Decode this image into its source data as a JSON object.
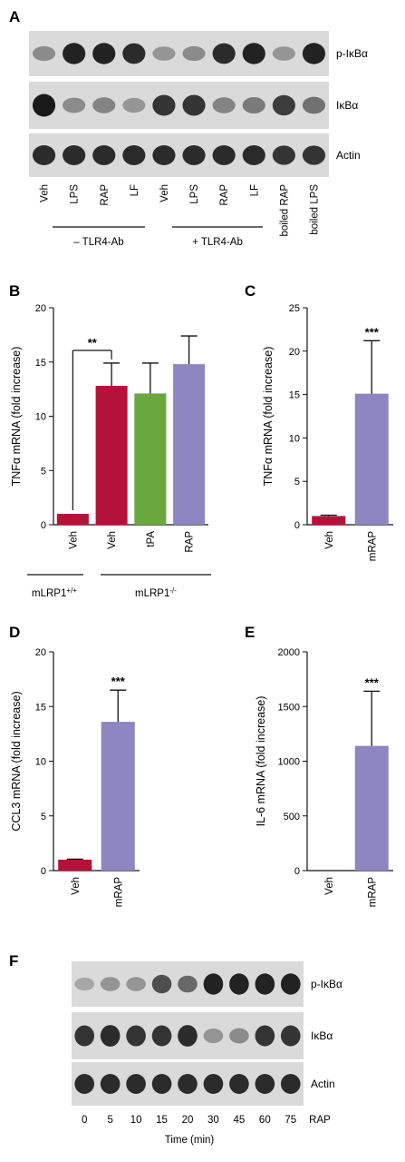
{
  "panels": {
    "A": "A",
    "B": "B",
    "C": "C",
    "D": "D",
    "E": "E",
    "F": "F"
  },
  "panel_A": {
    "blot_labels": [
      "p-IκBα",
      "IκBα",
      "Actin"
    ],
    "lanes": [
      "Veh",
      "LPS",
      "RAP",
      "LF",
      "Veh",
      "LPS",
      "RAP",
      "LF",
      "boiled RAP",
      "boiled LPS"
    ],
    "groups": [
      "– TLR4-Ab",
      "+ TLR4-Ab"
    ],
    "band_intensity": {
      "p-IkBa": [
        0.35,
        0.95,
        0.95,
        0.9,
        0.3,
        0.35,
        0.9,
        0.95,
        0.3,
        0.95
      ],
      "IkBa": [
        1.0,
        0.35,
        0.4,
        0.3,
        0.85,
        0.85,
        0.4,
        0.45,
        0.8,
        0.5
      ],
      "Actin": [
        0.9,
        0.9,
        0.9,
        0.9,
        0.9,
        0.9,
        0.9,
        0.9,
        0.85,
        0.85
      ]
    }
  },
  "panel_F": {
    "blot_labels": [
      "p-IκBα",
      "IκBα",
      "Actin"
    ],
    "lanes": [
      "0",
      "5",
      "10",
      "15",
      "20",
      "30",
      "45",
      "60",
      "75"
    ],
    "lane_suffix": "RAP",
    "xlabel": "Time (min)",
    "band_intensity": {
      "p-IkBa": [
        0.2,
        0.3,
        0.3,
        0.7,
        0.55,
        0.95,
        0.95,
        0.95,
        0.95
      ],
      "IkBa": [
        0.85,
        0.9,
        0.85,
        0.85,
        0.9,
        0.3,
        0.35,
        0.85,
        0.85
      ],
      "Actin": [
        0.9,
        0.9,
        0.9,
        0.9,
        0.9,
        0.9,
        0.9,
        0.9,
        0.9
      ]
    }
  },
  "chart_data": [
    {
      "panel": "B",
      "type": "bar",
      "categories": [
        "Veh",
        "Veh",
        "tPA",
        "RAP"
      ],
      "values": [
        1.0,
        12.8,
        12.1,
        14.8
      ],
      "errors": [
        0,
        2.1,
        2.8,
        2.6
      ],
      "colors": [
        "#b5123a",
        "#b5123a",
        "#6aa83f",
        "#8e86c0"
      ],
      "ylabel": "TNFα mRNA (fold increase)",
      "ylim": [
        0,
        20
      ],
      "yticks": [
        0,
        5,
        10,
        15,
        20
      ],
      "groups": [
        {
          "label": "mLRP1",
          "sup": "+/+"
        },
        {
          "label": "mLRP1",
          "sup": "-/-"
        }
      ],
      "annotation": "**"
    },
    {
      "panel": "C",
      "type": "bar",
      "categories": [
        "Veh",
        "mRAP"
      ],
      "values": [
        1.0,
        15.1
      ],
      "errors": [
        0.1,
        6.1
      ],
      "colors": [
        "#b5123a",
        "#8e86c0"
      ],
      "ylabel": "TNFα mRNA (fold increase)",
      "ylim": [
        0,
        25
      ],
      "yticks": [
        0,
        5,
        10,
        15,
        20,
        25
      ],
      "annotation": "***"
    },
    {
      "panel": "D",
      "type": "bar",
      "categories": [
        "Veh",
        "mRAP"
      ],
      "values": [
        1.0,
        13.6
      ],
      "errors": [
        0.05,
        2.9
      ],
      "colors": [
        "#b5123a",
        "#8e86c0"
      ],
      "ylabel": "CCL3 mRNA (fold increase)",
      "ylim": [
        0,
        20
      ],
      "yticks": [
        0,
        5,
        10,
        15,
        20
      ],
      "annotation": "***"
    },
    {
      "panel": "E",
      "type": "bar",
      "categories": [
        "Veh",
        "mRAP"
      ],
      "values": [
        1.0,
        1140
      ],
      "errors": [
        0,
        500
      ],
      "colors": [
        "#b5123a",
        "#8e86c0"
      ],
      "ylabel": "IL-6 mRNA (fold increase)",
      "ylim": [
        0,
        2000
      ],
      "yticks": [
        0,
        500,
        1000,
        1500,
        2000
      ],
      "annotation": "***"
    }
  ]
}
